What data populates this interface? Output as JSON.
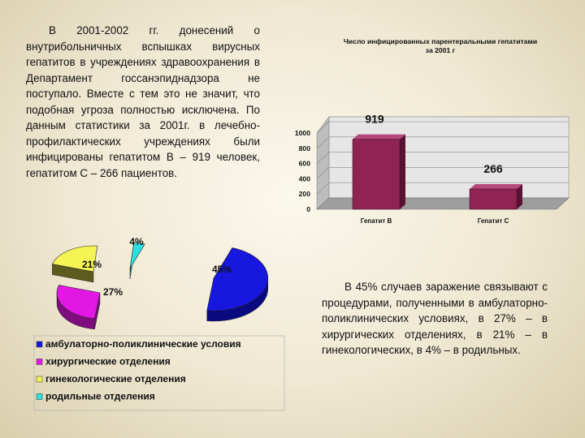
{
  "left_paragraph": "В 2001-2002 гг. донесений о внутрибольничных вспышках вирусных гепатитов в учреждениях здравоохранения в Департамент госсанэпиднадзора не поступало. Вместе с тем это не значит, что подобная угроза полностью исключена. По данным статистики за 2001г. в лечебно-профилактических учреждениях были инфицированы гепатитом В – 919 человек, гепатитом С – 266 пациентов.",
  "right_paragraph": "В 45% случаев заражение связывают с процедурами, полученными в амбулаторно-поликлинических условиях, в 27% – в хирургических отделениях, в 21% – в гинекологических, в 4% – в родильных.",
  "chart_data": [
    {
      "type": "bar",
      "title": "Число инфицированных парентеральными гепатитами за 2001 г",
      "categories": [
        "Гепатит В",
        "Гепатит С"
      ],
      "values": [
        919,
        266
      ],
      "value_labels": [
        "919",
        "266"
      ],
      "ylim": [
        0,
        1000
      ],
      "yticks": [
        "0",
        "200",
        "400",
        "600",
        "800",
        "1000"
      ],
      "grid": true,
      "color": "#8f2452"
    },
    {
      "type": "pie",
      "slices": [
        {
          "label": "45%",
          "value": 45,
          "color": "#1717e0",
          "dark": "#0a0a80"
        },
        {
          "label": "27%",
          "value": 27,
          "color": "#e317e3",
          "dark": "#7d0d7d"
        },
        {
          "label": "21%",
          "value": 21,
          "color": "#f4f455",
          "dark": "#5c5c1f"
        },
        {
          "label": "4%",
          "value": 4,
          "color": "#2ce0e0",
          "dark": "#157070"
        }
      ],
      "legend": [
        {
          "label": "амбулаторно-поликлинические условия",
          "color": "#1717e0"
        },
        {
          "label": "хирургические отделения",
          "color": "#e317e3"
        },
        {
          "label": "гинекологические отделения",
          "color": "#f4f455"
        },
        {
          "label": "родильные отделения",
          "color": "#2ce0e0"
        }
      ],
      "legend_placement": "bottom"
    }
  ]
}
